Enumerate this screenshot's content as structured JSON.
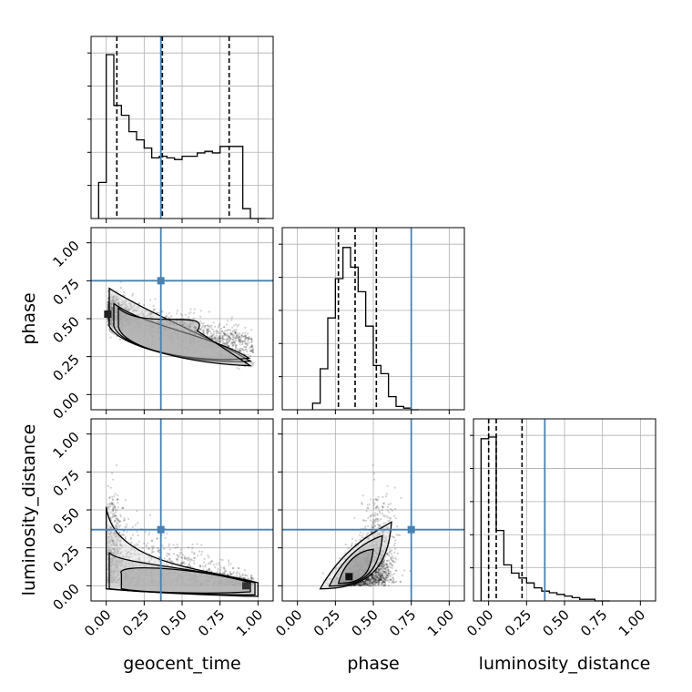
{
  "chart_data": {
    "type": "corner",
    "parameters": [
      "geocent_time",
      "phase",
      "luminosity_distance"
    ],
    "truths": {
      "geocent_time": 0.36,
      "phase": 0.75,
      "luminosity_distance": 0.37
    },
    "xlim": [
      -0.1,
      1.1
    ],
    "ylim": [
      -0.1,
      1.1
    ],
    "tick_labels": [
      "0.00",
      "0.25",
      "0.50",
      "0.75",
      "1.00"
    ],
    "tick_values": [
      0.0,
      0.25,
      0.5,
      0.75,
      1.0
    ],
    "grid": true,
    "truth_color": "#4682b4",
    "histograms": [
      {
        "parameter": "geocent_time",
        "bin_edges": [
          -0.05,
          0.0,
          0.05,
          0.1,
          0.15,
          0.2,
          0.25,
          0.3,
          0.35,
          0.4,
          0.45,
          0.5,
          0.55,
          0.6,
          0.65,
          0.7,
          0.75,
          0.8,
          0.85,
          0.9,
          0.95,
          1.0,
          1.05
        ],
        "counts": [
          0.22,
          1.0,
          0.69,
          0.63,
          0.53,
          0.48,
          0.43,
          0.37,
          0.38,
          0.37,
          0.36,
          0.38,
          0.38,
          0.4,
          0.41,
          0.4,
          0.44,
          0.44,
          0.44,
          0.06,
          0.0,
          0.0
        ],
        "quantiles": [
          0.07,
          0.37,
          0.81
        ]
      },
      {
        "parameter": "phase",
        "bin_edges": [
          0.1,
          0.15,
          0.2,
          0.25,
          0.3,
          0.35,
          0.4,
          0.45,
          0.5,
          0.55,
          0.6,
          0.65,
          0.7,
          0.75,
          0.8
        ],
        "counts": [
          0.04,
          0.25,
          0.56,
          0.8,
          0.99,
          0.87,
          0.72,
          0.51,
          0.27,
          0.22,
          0.08,
          0.02,
          0.01,
          0.0
        ],
        "quantiles": [
          0.27,
          0.38,
          0.52
        ]
      },
      {
        "parameter": "luminosity_distance",
        "bin_edges": [
          -0.05,
          0.0,
          0.05,
          0.1,
          0.15,
          0.2,
          0.25,
          0.3,
          0.35,
          0.4,
          0.45,
          0.5,
          0.55,
          0.6,
          0.65,
          0.7,
          0.75,
          0.8
        ],
        "counts": [
          0.99,
          1.0,
          0.43,
          0.22,
          0.17,
          0.14,
          0.11,
          0.08,
          0.06,
          0.05,
          0.04,
          0.03,
          0.02,
          0.01,
          0.01,
          0.0,
          0.0
        ],
        "quantiles": [
          0.0,
          0.05,
          0.22
        ]
      }
    ],
    "scatter_panels": [
      {
        "x": "geocent_time",
        "y": "phase"
      },
      {
        "x": "geocent_time",
        "y": "luminosity_distance"
      },
      {
        "x": "phase",
        "y": "luminosity_distance"
      }
    ]
  }
}
